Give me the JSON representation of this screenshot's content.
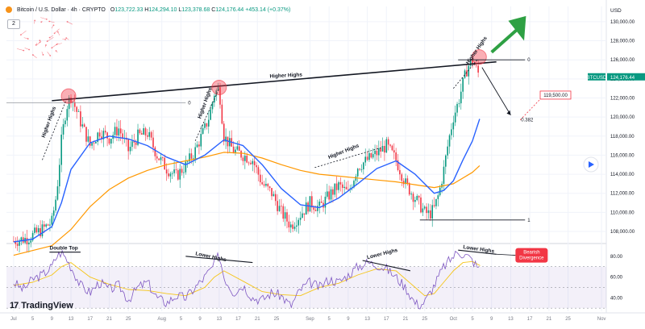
{
  "header": {
    "title": "Bitcoin / U.S. Dollar · 4h · CRYPTO",
    "ohlc": [
      {
        "k": "O",
        "v": "123,722.33"
      },
      {
        "k": "H",
        "v": "124,294.10"
      },
      {
        "k": "L",
        "v": "123,378.68"
      },
      {
        "k": "C",
        "v": "124,176.44"
      },
      {
        "k": "",
        "v": "+453.14 (+0.37%)"
      }
    ],
    "indicator_count": "2"
  },
  "currency": "USD",
  "logo": "TradingView",
  "colors": {
    "up": "#089981",
    "down": "#f23645",
    "ma_fast": "#2962ff",
    "ma_slow": "#ff9800",
    "rsi": "#7e57c2",
    "rsi_ma": "#f5c518",
    "arrow_green": "#2ea043",
    "label_red": "#f23645"
  },
  "price_tags": {
    "symbol": "BTCUSD",
    "last": "124,176.44",
    "target": "119,500.00",
    "level_0": "0",
    "level_1": "1",
    "level_0382": "0.382"
  },
  "annotations": {
    "higher_highs": "Higher Highs",
    "higher_highs_small": "Higher Highs",
    "double_top": "Double Top",
    "lower_highs": "Lower Highs",
    "bearish": "Bearish Divergence"
  },
  "icons": [
    "bitcoin-icon",
    "play-icon",
    "tradingview-logo-icon"
  ],
  "chart_data": [
    {
      "type": "line",
      "title": "Bitcoin / U.S. Dollar · 4h · CRYPTO",
      "ylabel": "USD",
      "y_ticks": [
        108000,
        110000,
        112000,
        114000,
        116000,
        118000,
        120000,
        122000,
        124000,
        126000,
        128000,
        130000
      ],
      "ylim": [
        106900,
        131600
      ],
      "x_ticks": [
        "Jul",
        "5",
        "9",
        "13",
        "17",
        "21",
        "25",
        "Aug",
        "5",
        "9",
        "13",
        "17",
        "21",
        "25",
        "Sep",
        "5",
        "9",
        "13",
        "17",
        "21",
        "25",
        "Oct",
        "5",
        "9",
        "13",
        "17",
        "21",
        "25",
        "Nov"
      ],
      "x_days": [
        0,
        4,
        8,
        12,
        16,
        20,
        24,
        31,
        35,
        39,
        43,
        47,
        51,
        55,
        62,
        66,
        70,
        74,
        78,
        82,
        86,
        92,
        96,
        100,
        104,
        108,
        112,
        116,
        123
      ],
      "series": [
        {
          "key": "price",
          "x": [
            0,
            3,
            6,
            8,
            9,
            10,
            11,
            12,
            14,
            16,
            18,
            20,
            22,
            24,
            26,
            28,
            30,
            32,
            34,
            36,
            38,
            40,
            41,
            42,
            43,
            44,
            46,
            48,
            50,
            52,
            54,
            56,
            58,
            60,
            62,
            64,
            66,
            68,
            70,
            72,
            74,
            76,
            78,
            80,
            82,
            84,
            86,
            87,
            88,
            89,
            90,
            91,
            92,
            93,
            94,
            95,
            96,
            97,
            97.6
          ],
          "y": [
            107000,
            107300,
            108200,
            109000,
            112000,
            117500,
            121000,
            122200,
            119500,
            117000,
            118500,
            117800,
            118800,
            116500,
            118000,
            118300,
            116000,
            114600,
            113800,
            114900,
            116500,
            118800,
            120200,
            122500,
            123000,
            118000,
            116500,
            116000,
            115500,
            113000,
            112000,
            110000,
            108600,
            109800,
            111000,
            110500,
            111800,
            112800,
            112000,
            114800,
            115500,
            116200,
            117000,
            115500,
            113000,
            111500,
            110000,
            109800,
            110400,
            112000,
            114500,
            117500,
            120000,
            121500,
            123500,
            125300,
            125900,
            124800,
            124200
          ]
        },
        {
          "key": "ma_fast",
          "x": [
            0,
            4,
            8,
            10,
            12,
            16,
            20,
            24,
            28,
            32,
            36,
            40,
            44,
            48,
            52,
            56,
            60,
            64,
            68,
            72,
            76,
            80,
            84,
            88,
            90,
            92,
            94,
            96,
            97.5
          ],
          "y": [
            106900,
            107200,
            108500,
            111000,
            114500,
            117300,
            118000,
            117700,
            117000,
            115800,
            115000,
            116000,
            117600,
            117000,
            115000,
            112500,
            110800,
            110500,
            111500,
            113000,
            114600,
            115400,
            114000,
            112000,
            112300,
            113300,
            115500,
            117500,
            119800
          ]
        },
        {
          "key": "ma_slow",
          "x": [
            0,
            8,
            12,
            16,
            20,
            24,
            28,
            32,
            36,
            40,
            44,
            48,
            52,
            56,
            60,
            64,
            68,
            72,
            76,
            80,
            84,
            88,
            92,
            96,
            97.5
          ],
          "y": [
            105500,
            106500,
            108200,
            110600,
            112400,
            113600,
            114400,
            115000,
            115400,
            115800,
            116300,
            116200,
            115700,
            115000,
            114400,
            114000,
            113800,
            113600,
            113400,
            113200,
            112900,
            112600,
            113000,
            114200,
            114900
          ]
        }
      ]
    },
    {
      "type": "line",
      "title": "RSI",
      "y_ticks": [
        40,
        60,
        80
      ],
      "ylim": [
        27,
        90
      ],
      "band": [
        30,
        70
      ],
      "x_ticks": [
        "Jul",
        "5",
        "9",
        "13",
        "17",
        "21",
        "25",
        "Aug",
        "5",
        "9",
        "13",
        "17",
        "21",
        "25",
        "Sep",
        "5",
        "9",
        "13",
        "17",
        "21",
        "25",
        "Oct",
        "5",
        "9",
        "13",
        "17",
        "21",
        "25",
        "Nov"
      ],
      "series": [
        {
          "key": "rsi",
          "x": [
            0,
            2,
            4,
            6,
            8,
            9,
            10,
            11,
            12,
            14,
            16,
            18,
            20,
            22,
            24,
            26,
            28,
            30,
            32,
            34,
            36,
            38,
            40,
            42,
            43,
            44,
            46,
            48,
            50,
            52,
            54,
            56,
            58,
            60,
            62,
            64,
            66,
            68,
            70,
            72,
            74,
            76,
            78,
            80,
            82,
            84,
            85,
            86,
            88,
            90,
            92,
            93,
            94,
            95,
            96,
            97,
            97.6
          ],
          "y": [
            55,
            48,
            58,
            62,
            70,
            80,
            84,
            78,
            70,
            52,
            45,
            55,
            48,
            52,
            38,
            50,
            55,
            40,
            35,
            42,
            40,
            50,
            60,
            72,
            82,
            60,
            45,
            52,
            40,
            38,
            45,
            42,
            32,
            48,
            55,
            50,
            58,
            55,
            62,
            70,
            74,
            72,
            68,
            60,
            50,
            35,
            33,
            36,
            52,
            70,
            80,
            85,
            82,
            80,
            76,
            70,
            64
          ]
        },
        {
          "key": "rsi_ma",
          "x": [
            0,
            4,
            8,
            10,
            12,
            16,
            20,
            24,
            28,
            32,
            36,
            40,
            42,
            44,
            48,
            52,
            56,
            60,
            64,
            68,
            72,
            76,
            80,
            84,
            86,
            88,
            90,
            92,
            94,
            96,
            97.6
          ],
          "y": [
            52,
            55,
            62,
            70,
            74,
            60,
            53,
            48,
            47,
            44,
            42,
            50,
            60,
            66,
            56,
            46,
            43,
            42,
            50,
            54,
            62,
            68,
            66,
            50,
            42,
            44,
            55,
            66,
            74,
            75,
            71
          ]
        }
      ]
    }
  ]
}
